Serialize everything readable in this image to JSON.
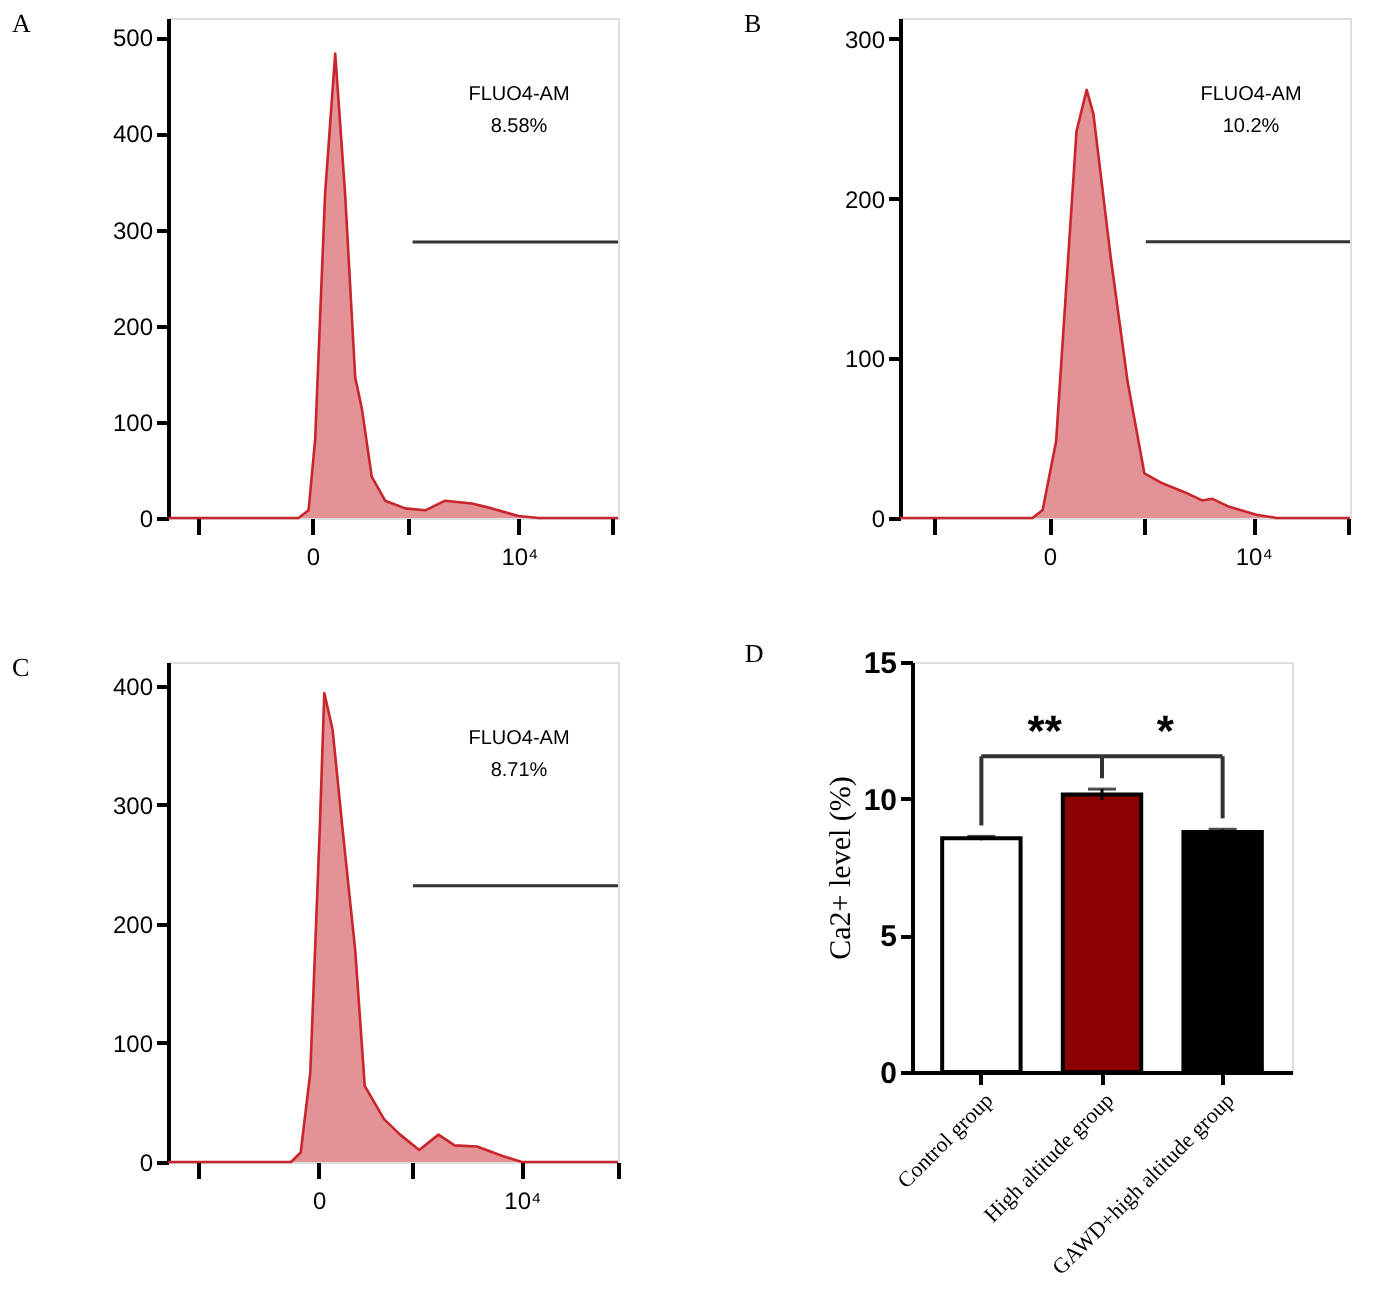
{
  "chart_data": [
    {
      "type": "area",
      "title": "A",
      "annotations": [
        "FLUO4-AM",
        "8.58%"
      ],
      "xlim": [
        -7000,
        14800
      ],
      "ylim": [
        0,
        520
      ],
      "yticks": [
        0,
        100,
        200,
        300,
        400,
        500
      ],
      "xticks": [
        {
          "value": -5500,
          "label": null
        },
        {
          "value": 0,
          "label": "0"
        },
        {
          "value": 4650,
          "label": null
        },
        {
          "value": 10000,
          "label": "10⁴"
        },
        {
          "value": 14550,
          "label": null
        }
      ],
      "grid": false,
      "series": [
        {
          "type": "area",
          "color": "#c8262c",
          "x": [
            -6980,
            -680,
            -190,
            130,
            610,
            1100,
            1580,
            2070,
            2390,
            2870,
            3520,
            4490,
            5460,
            6430,
            7720,
            8690,
            9980,
            10950,
            14800
          ],
          "values": [
            0,
            0,
            8,
            82,
            337,
            483,
            337,
            146,
            114,
            43,
            18,
            10,
            8,
            18,
            15,
            10,
            2,
            0,
            0
          ]
        },
        {
          "type": "line",
          "color": "#333333",
          "x": [
            4850,
            14800
          ],
          "values": [
            287,
            287
          ]
        }
      ]
    },
    {
      "type": "area",
      "title": "B",
      "annotations": [
        "FLUO4-AM",
        "10.2%"
      ],
      "xlim": [
        -7330,
        14750
      ],
      "ylim": [
        0,
        313
      ],
      "yticks": [
        0,
        100,
        200,
        300
      ],
      "xticks": [
        {
          "value": -5700,
          "label": null
        },
        {
          "value": 0,
          "label": "0"
        },
        {
          "value": 4660,
          "label": null
        },
        {
          "value": 10000,
          "label": "10⁴"
        },
        {
          "value": 14700,
          "label": null
        }
      ],
      "grid": false,
      "series": [
        {
          "type": "area",
          "color": "#c8262c",
          "x": [
            -7330,
            -830,
            -330,
            330,
            1330,
            1830,
            2160,
            3000,
            3830,
            4660,
            5500,
            6660,
            7490,
            8000,
            8830,
            10160,
            11160,
            14750
          ],
          "values": [
            0,
            0,
            5,
            48,
            242,
            268,
            253,
            164,
            86,
            28,
            22,
            16,
            11,
            12,
            7,
            2,
            0,
            0
          ]
        },
        {
          "type": "line",
          "color": "#333333",
          "x": [
            4730,
            14750
          ],
          "values": [
            173,
            173
          ]
        }
      ]
    },
    {
      "type": "area",
      "title": "C",
      "annotations": [
        "FLUO4-AM",
        "8.71%"
      ],
      "xlim": [
        -7410,
        14730
      ],
      "ylim": [
        0,
        420
      ],
      "yticks": [
        0,
        100,
        200,
        300,
        400
      ],
      "xticks": [
        {
          "value": -5900,
          "label": null
        },
        {
          "value": 0,
          "label": "0"
        },
        {
          "value": 4640,
          "label": null
        },
        {
          "value": 10000,
          "label": "10⁴"
        },
        {
          "value": 14700,
          "label": null
        }
      ],
      "grid": false,
      "series": [
        {
          "type": "area",
          "color": "#c8262c",
          "x": [
            -7410,
            -1360,
            -880,
            -410,
            60,
            280,
            690,
            1170,
            1800,
            2270,
            3220,
            4010,
            4950,
            5900,
            6690,
            7790,
            9050,
            10000,
            14730
          ],
          "values": [
            0,
            0,
            8,
            75,
            281,
            394,
            363,
            281,
            178,
            64,
            36,
            23,
            10,
            23,
            14,
            13,
            5,
            0,
            0
          ]
        },
        {
          "type": "line",
          "color": "#333333",
          "x": [
            4640,
            14730
          ],
          "values": [
            232,
            232
          ]
        }
      ]
    },
    {
      "type": "bar",
      "title": "D",
      "ylabel": "Ca2+ level (%)",
      "categories": [
        "Control group",
        "High altitude group",
        "GAWD+high altitude group"
      ],
      "values": [
        8.55,
        10.15,
        8.78
      ],
      "errors": [
        0.07,
        0.2,
        0.1
      ],
      "colors": [
        "#ffffff",
        "#8b0000",
        "#000000"
      ],
      "ylim": [
        0,
        15
      ],
      "yticks": [
        0,
        5,
        10,
        15
      ],
      "annotations": [
        "**",
        "*"
      ],
      "grid": false
    }
  ]
}
